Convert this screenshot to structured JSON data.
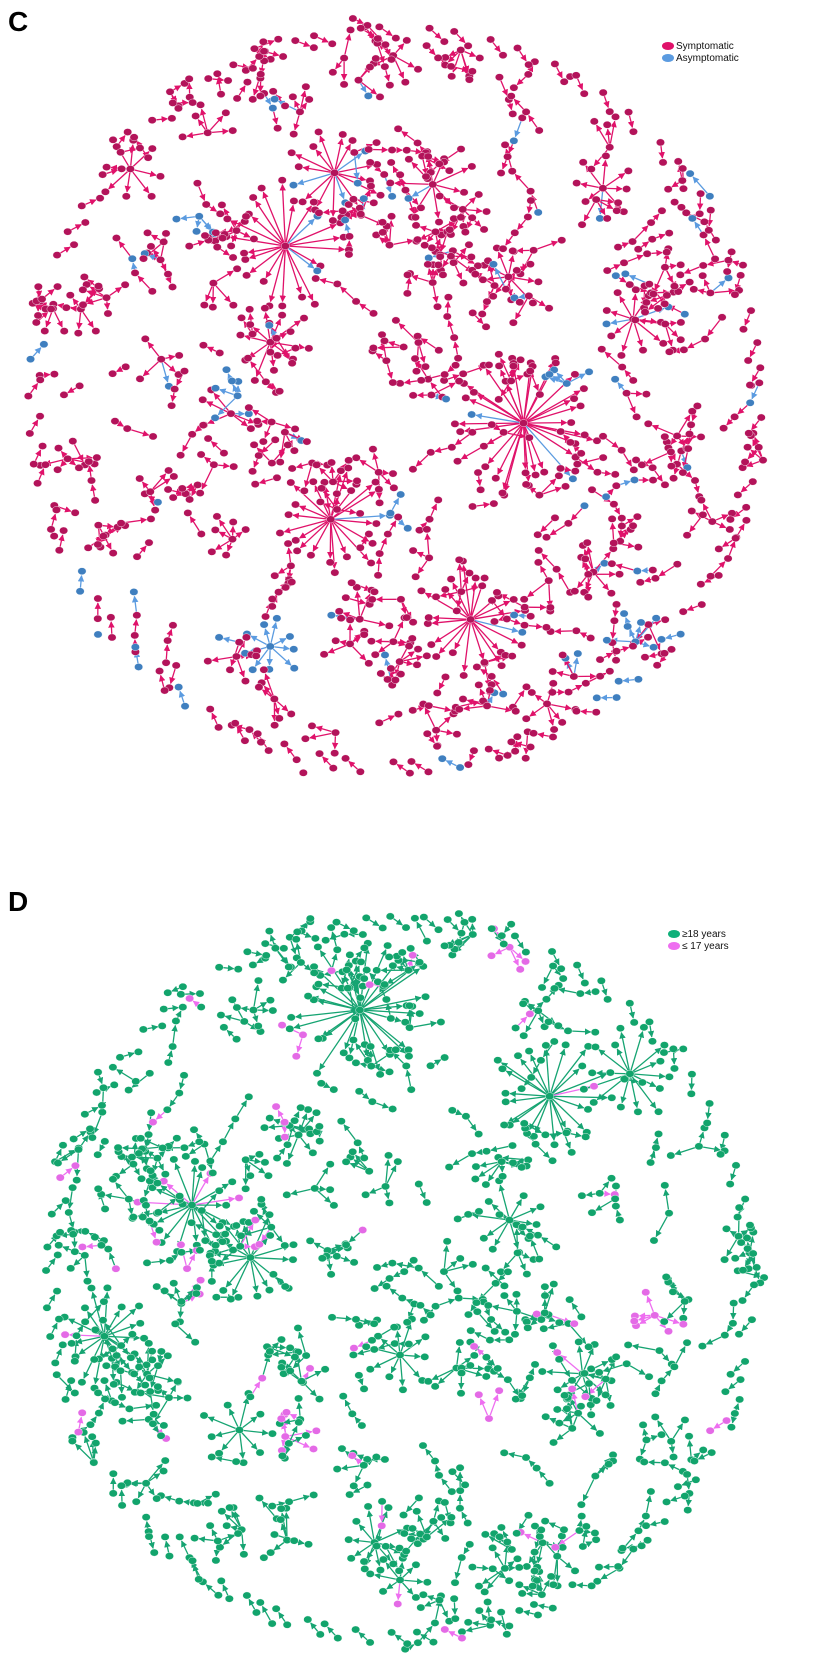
{
  "panels": [
    {
      "letter": "C",
      "legend": [
        {
          "label": "Symptomatic",
          "color": "#e0126a"
        },
        {
          "label": "Asymptomatic",
          "color": "#5b9be0"
        }
      ],
      "node_colors": {
        "primary": "#b3135a",
        "secondary": "#3f7fbf"
      },
      "edge_colors": {
        "primary": "#e0126a",
        "secondary": "#5b9be0"
      }
    },
    {
      "letter": "D",
      "legend": [
        {
          "label": "≥18 years",
          "color": "#10b07a"
        },
        {
          "label": "≤ 17 years",
          "color": "#ee6ef0"
        }
      ],
      "node_colors": {
        "primary": "#12a46c",
        "secondary": "#e46ae6"
      },
      "edge_colors": {
        "primary": "#16a472",
        "secondary": "#ee6ef0"
      }
    }
  ]
}
